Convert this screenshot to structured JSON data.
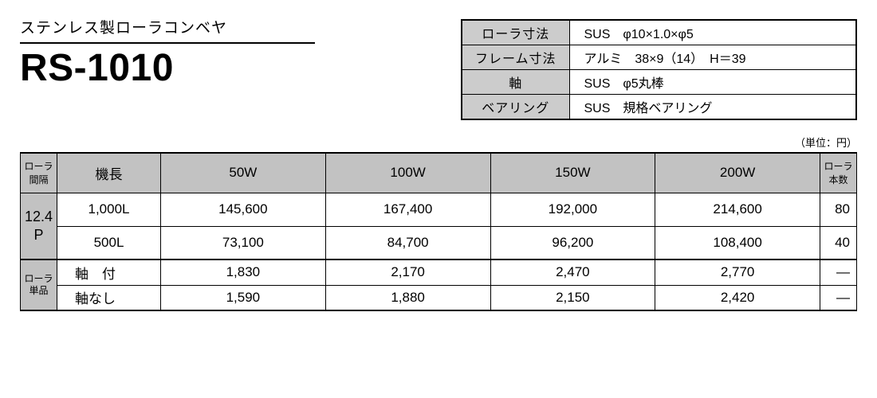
{
  "header": {
    "subtitle": "ステンレス製ローラコンベヤ",
    "model": "RS-1010"
  },
  "spec": {
    "rows": [
      {
        "label": "ローラ寸法",
        "value": "SUS　φ10×1.0×φ5"
      },
      {
        "label": "フレーム寸法",
        "value": "アルミ　38×9（14）　H＝39"
      },
      {
        "label": "軸",
        "value": "SUS　φ5丸棒"
      },
      {
        "label": "ベアリング",
        "value": "SUS　規格ベアリング"
      }
    ]
  },
  "unit_note": "（単位：円）",
  "price": {
    "headers": {
      "pitch": "ローラ\n間隔",
      "length": "機長",
      "w": [
        "50W",
        "100W",
        "150W",
        "200W"
      ],
      "qty": "ローラ\n本数"
    },
    "pitch_value": "12.4\nP",
    "body_rows": [
      {
        "length": "1,000L",
        "cells": [
          "145,600",
          "167,400",
          "192,000",
          "214,600"
        ],
        "qty": "80"
      },
      {
        "length": "500L",
        "cells": [
          "73,100",
          "84,700",
          "96,200",
          "108,400"
        ],
        "qty": "40"
      }
    ],
    "unit_label": "ローラ\n単品",
    "unit_rows": [
      {
        "length": "軸　付",
        "cells": [
          "1,830",
          "2,170",
          "2,470",
          "2,770"
        ],
        "qty": "—"
      },
      {
        "length": "軸なし",
        "cells": [
          "1,590",
          "1,880",
          "2,150",
          "2,420"
        ],
        "qty": "—"
      }
    ]
  },
  "style": {
    "header_bg": "#c2c2c2",
    "border_color": "#000000",
    "body_bg": "#ffffff"
  }
}
